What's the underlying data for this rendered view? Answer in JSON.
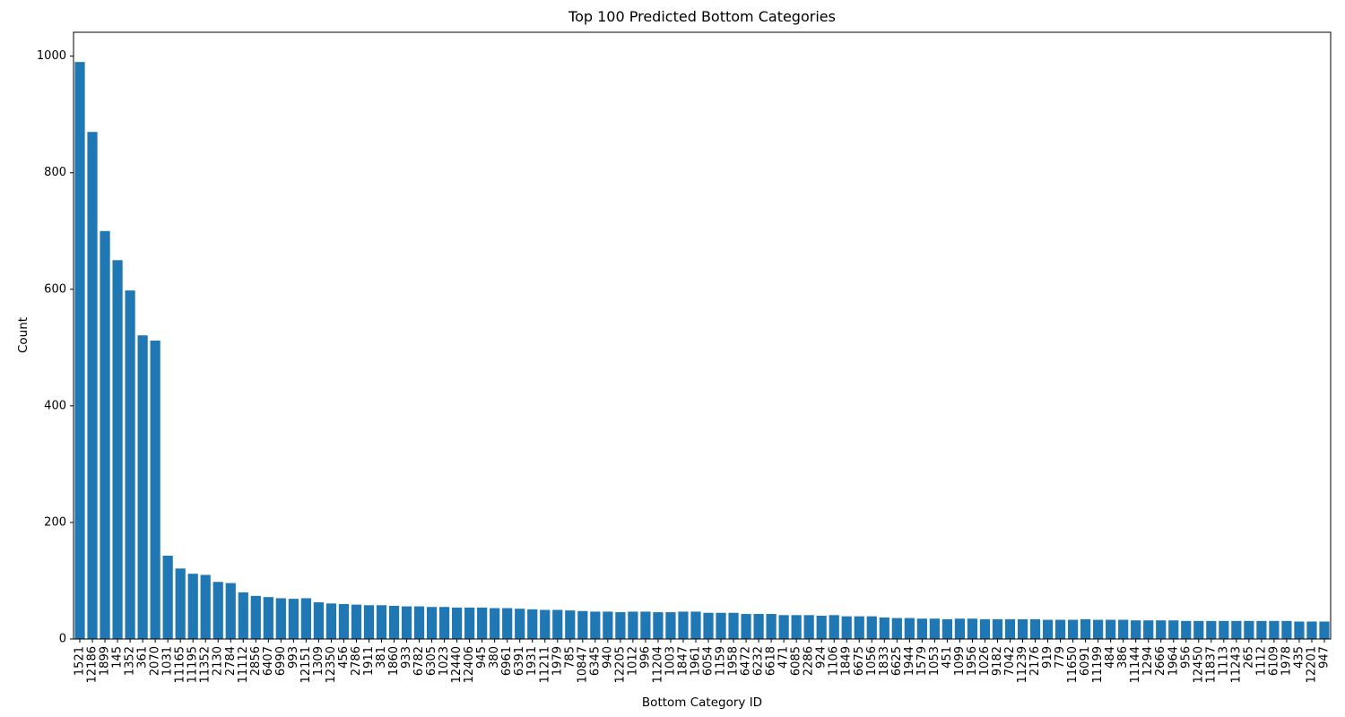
{
  "chart_data": {
    "type": "bar",
    "title": "Top 100 Predicted Bottom Categories",
    "xlabel": "Bottom Category ID",
    "ylabel": "Count",
    "bar_color": "#1f77b4",
    "spine_color": "#000000",
    "background_color": "#ffffff",
    "grid": false,
    "legend": false,
    "x_tick_rotation_deg": 90,
    "ylim": [
      0,
      1041
    ],
    "yticks": [
      0,
      200,
      400,
      600,
      800,
      1000
    ],
    "categories": [
      "1521",
      "12186",
      "1899",
      "145",
      "1352",
      "361",
      "2070",
      "1031",
      "11165",
      "11195",
      "11352",
      "2130",
      "2784",
      "11112",
      "2856",
      "6407",
      "6990",
      "993",
      "12151",
      "1309",
      "12350",
      "456",
      "2786",
      "1911",
      "381",
      "1860",
      "933",
      "6782",
      "6305",
      "1023",
      "12440",
      "12406",
      "945",
      "380",
      "6961",
      "6391",
      "1931",
      "11211",
      "1979",
      "785",
      "10847",
      "6345",
      "940",
      "12205",
      "1012",
      "996",
      "11204",
      "1003",
      "1847",
      "1961",
      "6054",
      "1159",
      "1958",
      "6472",
      "6232",
      "6618",
      "471",
      "6085",
      "2286",
      "924",
      "1106",
      "1849",
      "6675",
      "1056",
      "1833",
      "6625",
      "1944",
      "1579",
      "1053",
      "451",
      "1099",
      "1956",
      "1026",
      "9182",
      "7042",
      "11239",
      "2176",
      "919",
      "779",
      "11650",
      "6091",
      "11199",
      "484",
      "386",
      "11144",
      "1294",
      "2666",
      "1964",
      "956",
      "12450",
      "11837",
      "1113",
      "11243",
      "265",
      "1112",
      "6109",
      "1978",
      "435",
      "12201",
      "947"
    ],
    "values": [
      990,
      870,
      700,
      650,
      598,
      521,
      512,
      143,
      121,
      112,
      110,
      98,
      96,
      80,
      74,
      72,
      70,
      69,
      70,
      63,
      61,
      60,
      59,
      58,
      58,
      57,
      56,
      56,
      55,
      55,
      54,
      54,
      54,
      53,
      53,
      52,
      51,
      50,
      50,
      49,
      48,
      47,
      47,
      46,
      47,
      47,
      46,
      46,
      47,
      47,
      45,
      45,
      45,
      43,
      43,
      43,
      41,
      41,
      41,
      40,
      41,
      39,
      39,
      39,
      37,
      36,
      36,
      35,
      35,
      34,
      35,
      35,
      34,
      34,
      34,
      34,
      34,
      33,
      33,
      33,
      34,
      33,
      33,
      33,
      32,
      32,
      32,
      32,
      31,
      31,
      31,
      31,
      31,
      31,
      31,
      31,
      31,
      30,
      30,
      30
    ]
  }
}
